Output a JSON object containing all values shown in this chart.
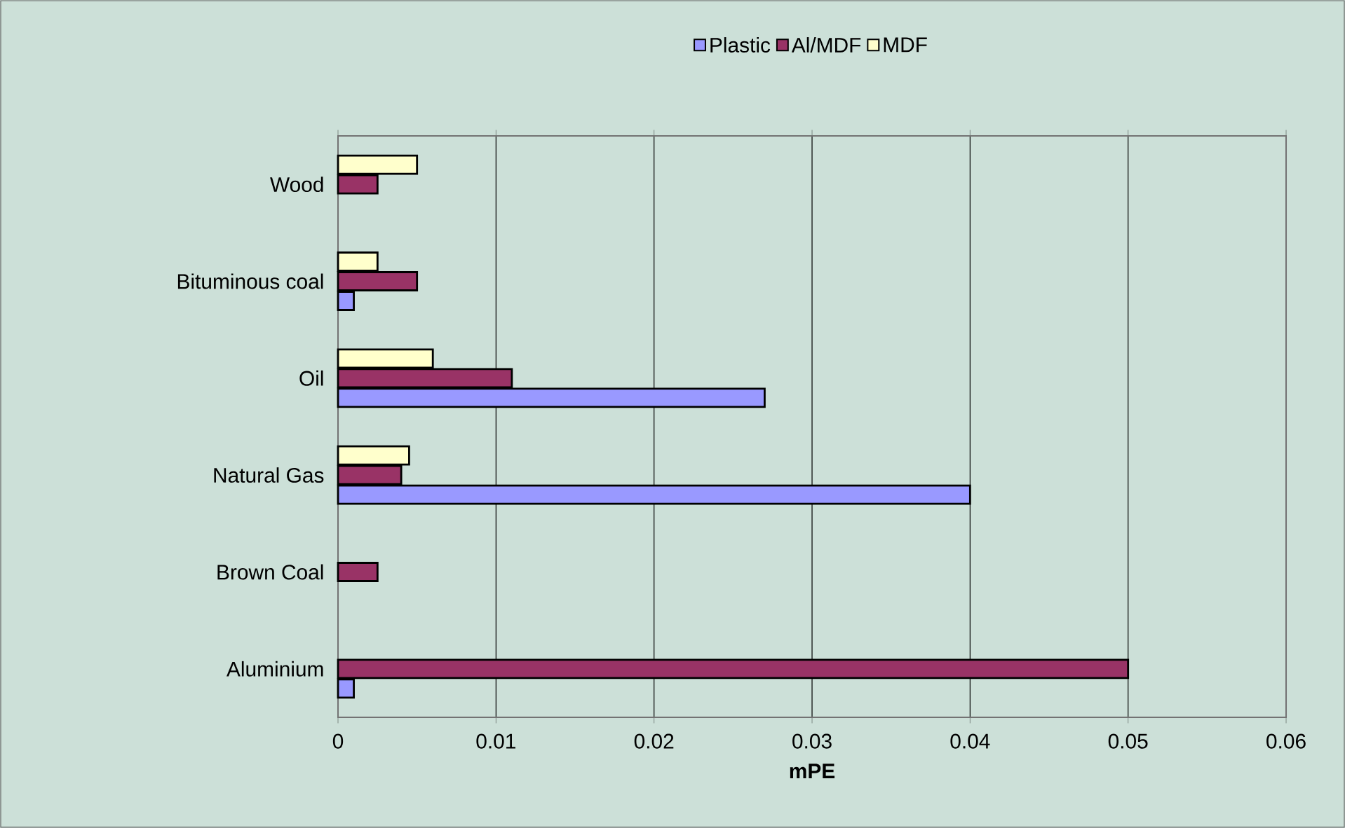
{
  "chart_data": {
    "type": "bar",
    "orientation": "horizontal",
    "xlabel": "mPE",
    "categories": [
      "Wood",
      "Bituminous coal",
      "Oil",
      "Natural Gas",
      "Brown Coal",
      "Aluminium"
    ],
    "series": [
      {
        "name": "Plastic",
        "color": "#9999ff",
        "values": [
          null,
          0.001,
          0.027,
          0.04,
          null,
          0.001
        ]
      },
      {
        "name": "Al/MDF",
        "color": "#993366",
        "values": [
          0.0025,
          0.005,
          0.011,
          0.004,
          0.0025,
          0.05
        ]
      },
      {
        "name": "MDF",
        "color": "#ffffcc",
        "values": [
          0.005,
          0.0025,
          0.006,
          0.0045,
          null,
          null
        ]
      }
    ],
    "xlim": [
      0,
      0.06
    ],
    "xticks": [
      0,
      0.01,
      0.02,
      0.03,
      0.04,
      0.05,
      0.06
    ],
    "grid": "x",
    "legend": "top"
  }
}
